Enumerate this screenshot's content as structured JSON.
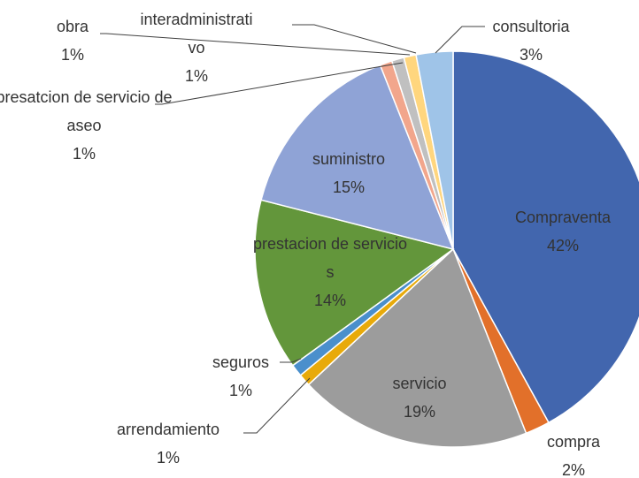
{
  "chart_data": {
    "type": "pie",
    "categories": [
      "Compraventa",
      "compra",
      "servicio",
      "arrendamiento",
      "seguros",
      "prestacion de servicios",
      "suministro",
      "presatcion de servicio de aseo",
      "obra",
      "interadministrativo",
      "consultoria"
    ],
    "values": [
      42,
      2,
      19,
      1,
      1,
      14,
      15,
      1,
      1,
      1,
      3
    ],
    "value_labels": [
      "42%",
      "2%",
      "19%",
      "1%",
      "1%",
      "14%",
      "15%",
      "1%",
      "1%",
      "1%",
      "3%"
    ],
    "colors": [
      "#4266ae",
      "#e2702a",
      "#9c9c9c",
      "#e8aa0a",
      "#4a8fcc",
      "#63963b",
      "#8fa3d6",
      "#f2a68c",
      "#c0c0c0",
      "#ffd67e",
      "#9fc4e8"
    ]
  }
}
